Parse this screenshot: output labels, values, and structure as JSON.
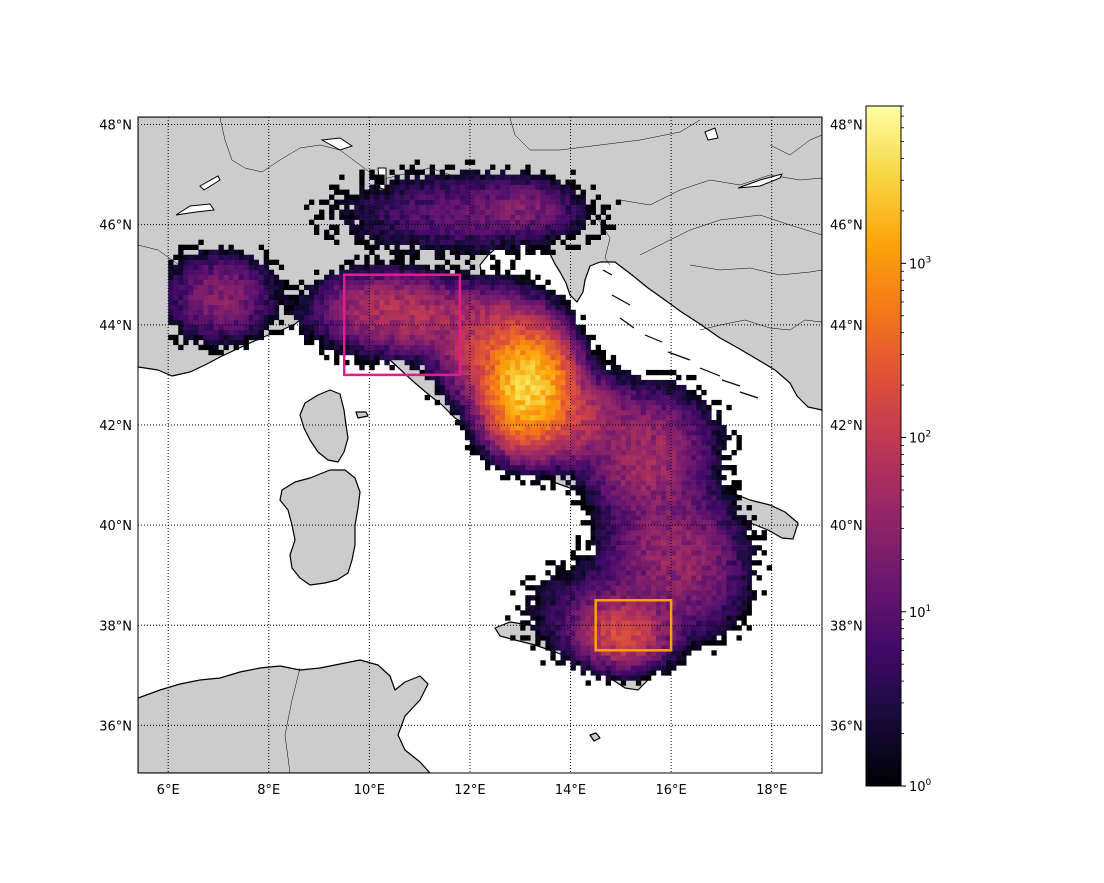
{
  "chart_data": {
    "type": "heatmap",
    "title": "",
    "map_extent": {
      "lon": [
        5.4,
        19.0
      ],
      "lat": [
        35.05,
        48.15
      ]
    },
    "lon_ticks": [
      6,
      8,
      10,
      12,
      14,
      16,
      18
    ],
    "lat_ticks": [
      36,
      38,
      40,
      42,
      44,
      46,
      48
    ],
    "lon_tick_labels": [
      "6°E",
      "8°E",
      "10°E",
      "12°E",
      "14°E",
      "16°E",
      "18°E"
    ],
    "lat_tick_labels": [
      "36°N",
      "38°N",
      "40°N",
      "42°N",
      "44°N",
      "46°N",
      "48°N"
    ],
    "grid": true,
    "colorbar": {
      "scale": "log",
      "colormap": "inferno",
      "range": [
        1,
        8000
      ],
      "ticks": [
        1,
        10,
        100,
        1000
      ],
      "tick_labels": [
        {
          "base": "10",
          "exp": "0"
        },
        {
          "base": "10",
          "exp": "1"
        },
        {
          "base": "10",
          "exp": "2"
        },
        {
          "base": "10",
          "exp": "3"
        }
      ]
    },
    "highlight_boxes": [
      {
        "lon": [
          9.5,
          11.8
        ],
        "lat": [
          43.0,
          45.0
        ],
        "color": "#e8198b"
      },
      {
        "lon": [
          14.5,
          16.0
        ],
        "lat": [
          37.5,
          38.5
        ],
        "color": "#ff9e00"
      }
    ],
    "density_clusters": [
      {
        "lon": 13.1,
        "lat": 42.7,
        "sigma_lon": 0.35,
        "sigma_lat": 0.45,
        "peak": 3500
      },
      {
        "lon": 12.6,
        "lat": 43.4,
        "sigma_lon": 0.5,
        "sigma_lat": 0.45,
        "peak": 250
      },
      {
        "lon": 13.8,
        "lat": 42.1,
        "sigma_lon": 0.6,
        "sigma_lat": 0.4,
        "peak": 120
      },
      {
        "lon": 11.0,
        "lat": 44.1,
        "sigma_lon": 0.9,
        "sigma_lat": 0.35,
        "peak": 60
      },
      {
        "lon": 10.2,
        "lat": 44.4,
        "sigma_lon": 0.6,
        "sigma_lat": 0.3,
        "peak": 40
      },
      {
        "lon": 7.0,
        "lat": 44.5,
        "sigma_lon": 0.5,
        "sigma_lat": 0.4,
        "peak": 30
      },
      {
        "lon": 11.8,
        "lat": 46.2,
        "sigma_lon": 1.2,
        "sigma_lat": 0.4,
        "peak": 12
      },
      {
        "lon": 13.0,
        "lat": 46.3,
        "sigma_lon": 0.5,
        "sigma_lat": 0.25,
        "peak": 20
      },
      {
        "lon": 15.5,
        "lat": 41.6,
        "sigma_lon": 0.6,
        "sigma_lat": 0.5,
        "peak": 40
      },
      {
        "lon": 15.4,
        "lat": 40.9,
        "sigma_lon": 0.5,
        "sigma_lat": 0.4,
        "peak": 30
      },
      {
        "lon": 15.9,
        "lat": 39.5,
        "sigma_lon": 0.6,
        "sigma_lat": 0.7,
        "peak": 35
      },
      {
        "lon": 15.0,
        "lat": 37.8,
        "sigma_lon": 0.4,
        "sigma_lat": 0.3,
        "peak": 180
      },
      {
        "lon": 14.8,
        "lat": 38.2,
        "sigma_lon": 0.8,
        "sigma_lat": 0.5,
        "peak": 15
      },
      {
        "lon": 16.5,
        "lat": 39.0,
        "sigma_lon": 0.5,
        "sigma_lat": 0.6,
        "peak": 15
      }
    ]
  }
}
